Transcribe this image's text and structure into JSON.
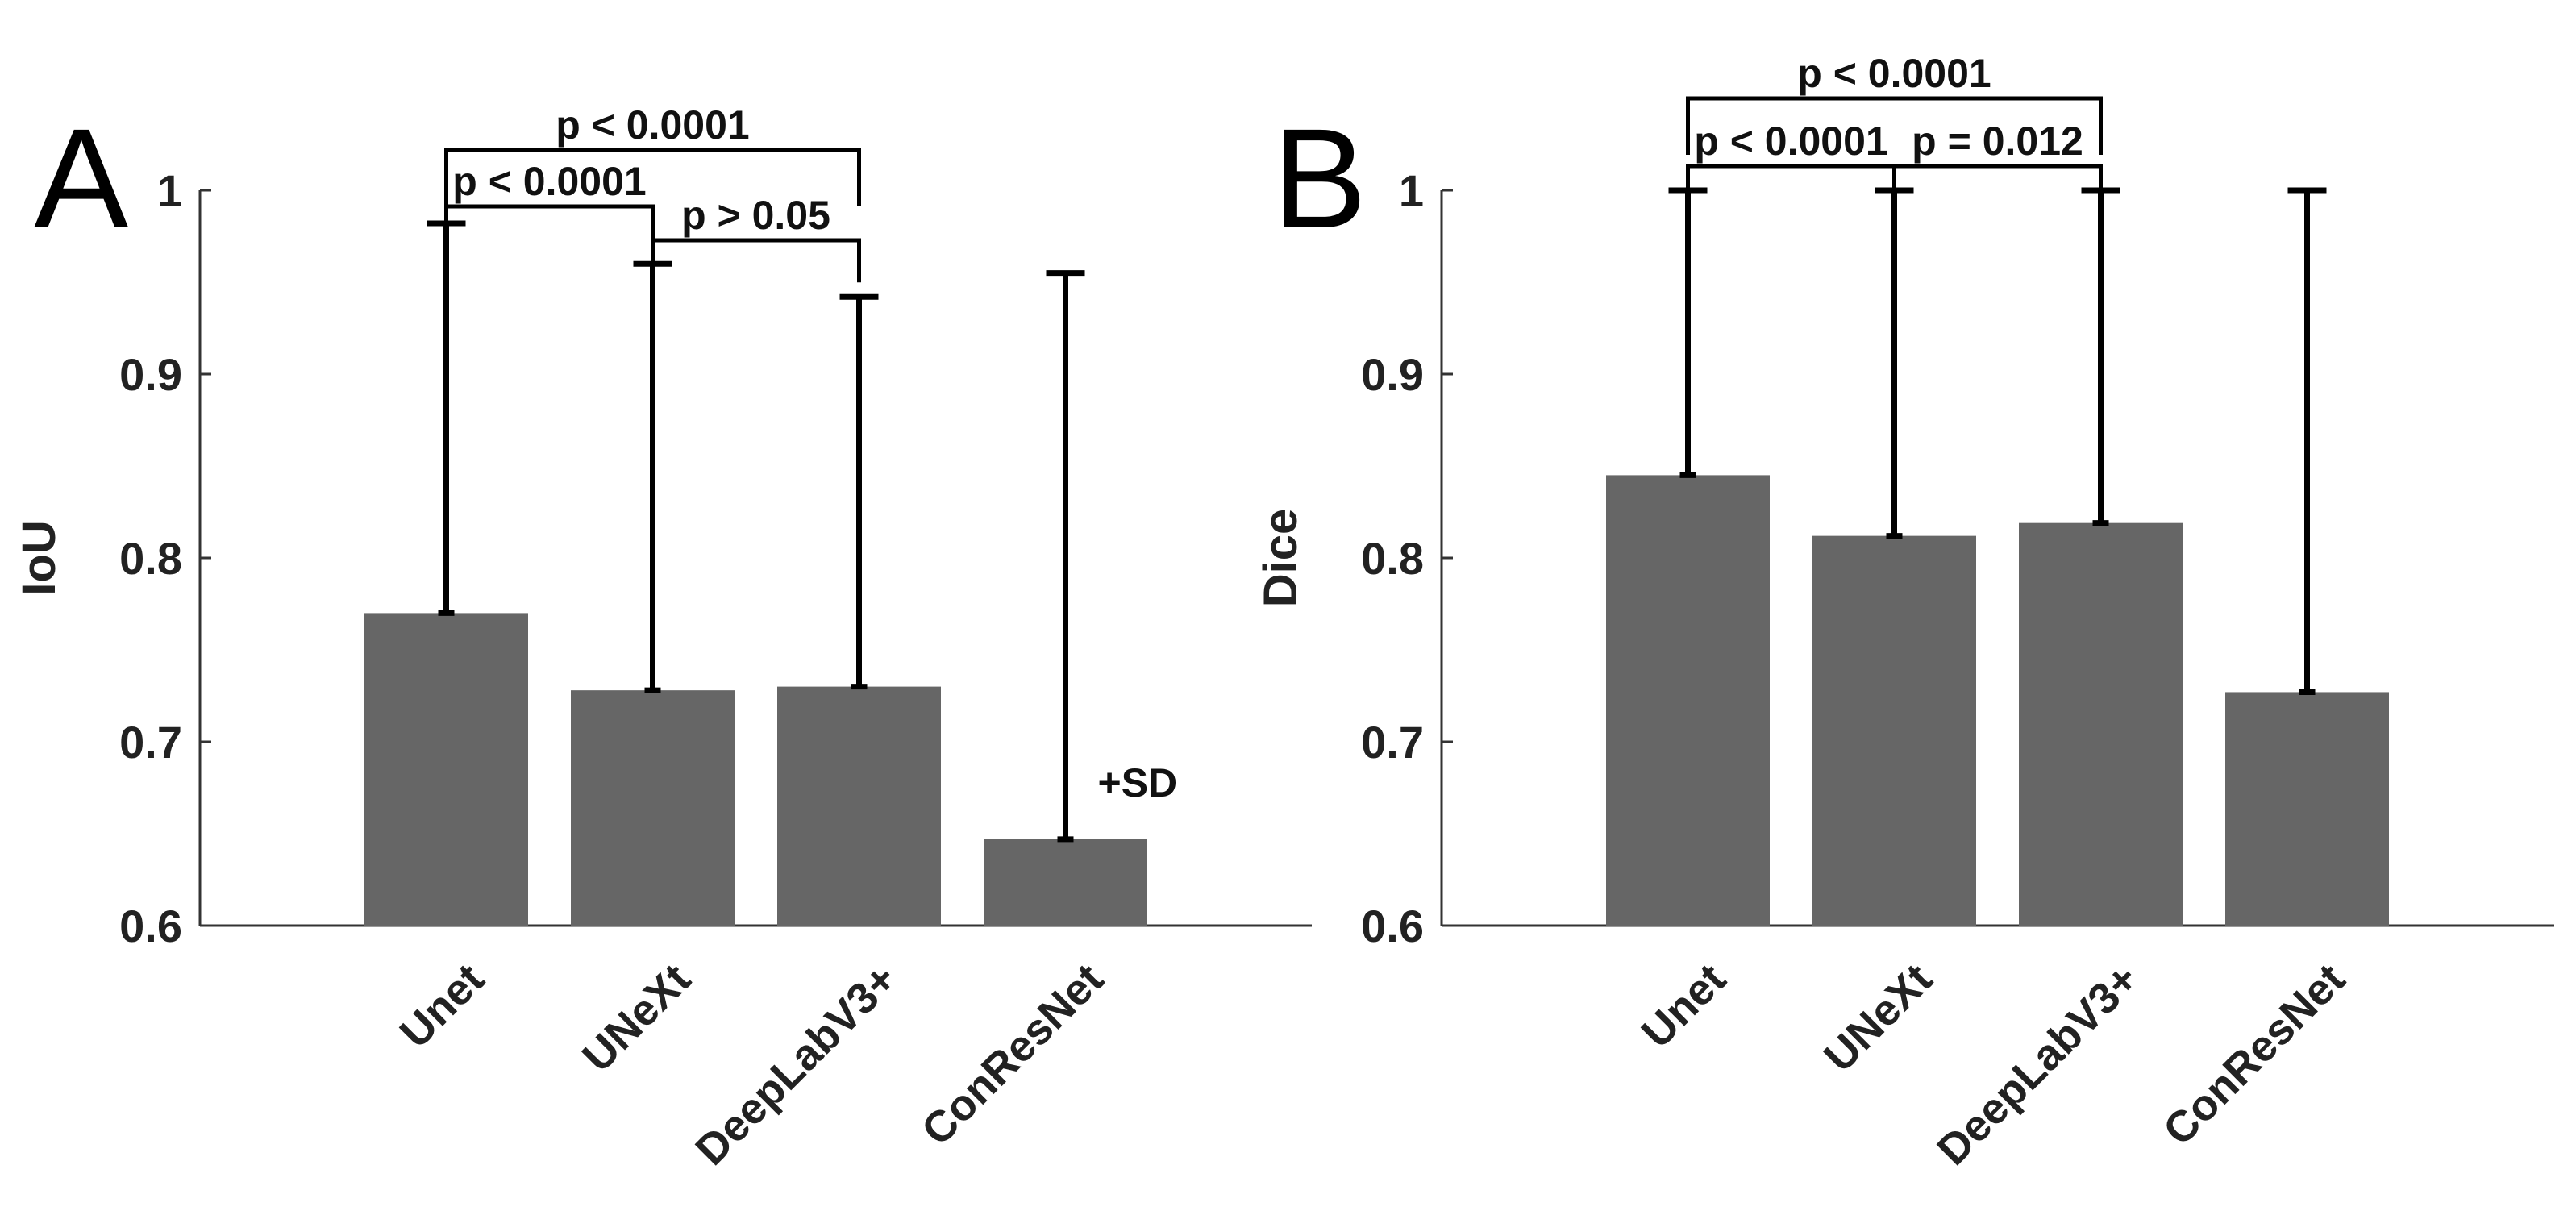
{
  "chart_data": [
    {
      "type": "bar",
      "panel": "A",
      "ylabel": "IoU",
      "ylim": [
        0.6,
        1
      ],
      "yticks": [
        0.6,
        0.7,
        0.8,
        0.9,
        1
      ],
      "ytick_labels": [
        "0.6",
        "0.7",
        "0.8",
        "0.9",
        "1"
      ],
      "categories": [
        "Unet",
        "UNeXt",
        "DeepLabV3+",
        "ConResNet"
      ],
      "values": [
        0.77,
        0.728,
        0.73,
        0.647
      ],
      "error_upper": [
        0.982,
        0.96,
        0.942,
        0.955
      ],
      "error_label": "+SD",
      "comparisons": [
        {
          "a": 0,
          "b": 1,
          "label": "p < 0.0001"
        },
        {
          "a": 1,
          "b": 2,
          "label": "p > 0.05"
        },
        {
          "a": 0,
          "b": 2,
          "label": "p < 0.0001"
        }
      ]
    },
    {
      "type": "bar",
      "panel": "B",
      "ylabel": "Dice",
      "ylim": [
        0.6,
        1
      ],
      "yticks": [
        0.6,
        0.7,
        0.8,
        0.9,
        1
      ],
      "ytick_labels": [
        "0.6",
        "0.7",
        "0.8",
        "0.9",
        "1"
      ],
      "categories": [
        "Unet",
        "UNeXt",
        "DeepLabV3+",
        "ConResNet"
      ],
      "values": [
        0.845,
        0.812,
        0.819,
        0.727
      ],
      "error_upper": [
        1.0,
        1.0,
        1.0,
        1.0
      ],
      "error_label": "",
      "comparisons": [
        {
          "a": 0,
          "b": 1,
          "label": "p < 0.0001"
        },
        {
          "a": 1,
          "b": 2,
          "label": "p = 0.012"
        },
        {
          "a": 0,
          "b": 2,
          "label": "p < 0.0001"
        }
      ]
    }
  ]
}
